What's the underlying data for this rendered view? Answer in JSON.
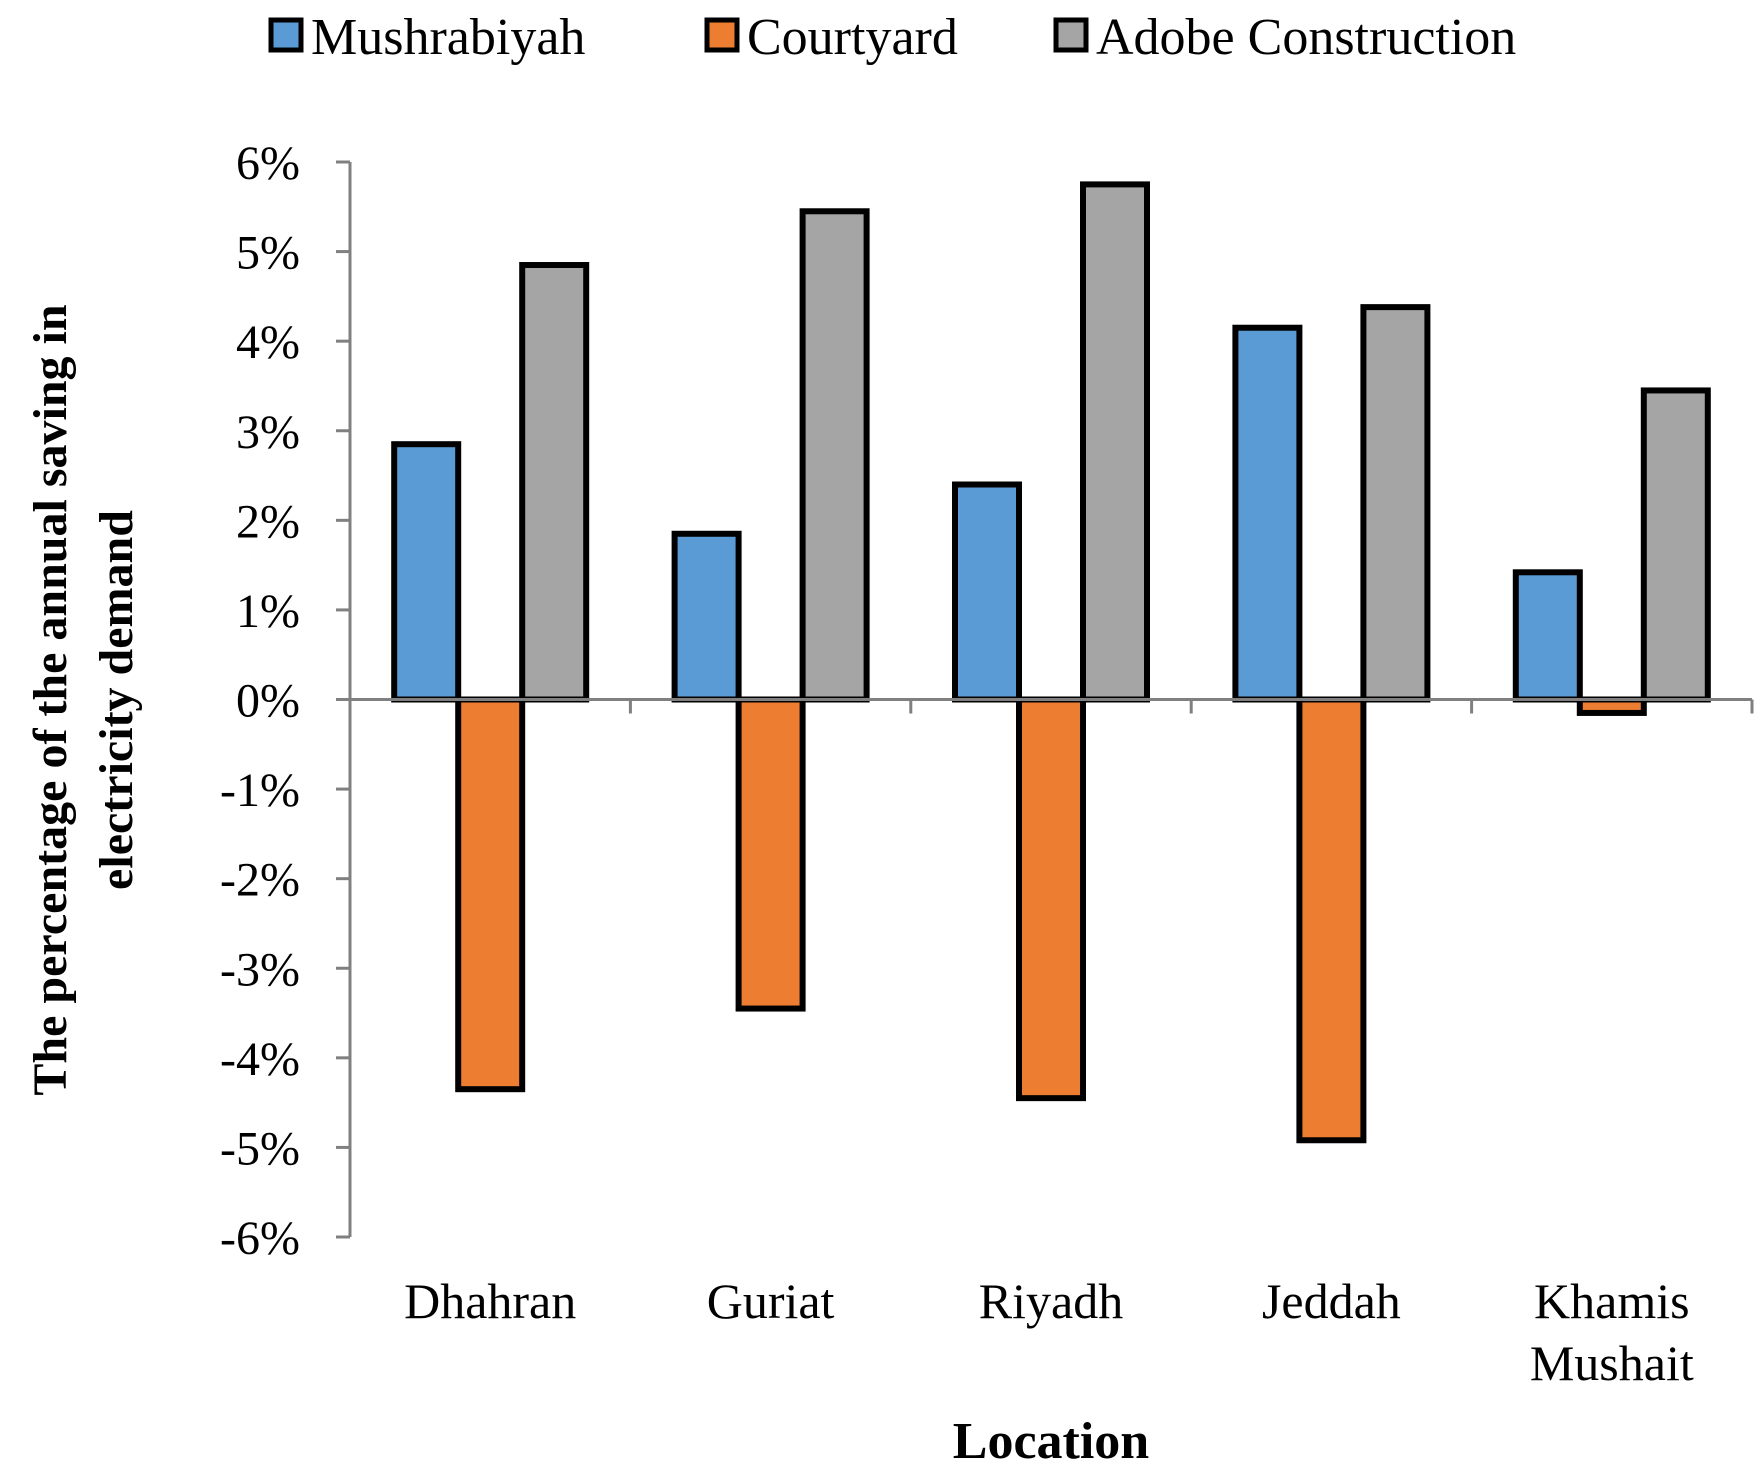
{
  "chart_data": {
    "type": "bar",
    "title": "",
    "xlabel": "Location",
    "ylabel_lines": [
      "The percentage of the annual saving in",
      "electricity demand"
    ],
    "ylim": [
      -6,
      6
    ],
    "ytick_step": 1,
    "ytick_suffix": "%",
    "yticks": [
      "-6%",
      "-5%",
      "-4%",
      "-3%",
      "-2%",
      "-1%",
      "0%",
      "1%",
      "2%",
      "3%",
      "4%",
      "5%",
      "6%"
    ],
    "grid": false,
    "legend_position": "top",
    "categories": [
      [
        "Dhahran"
      ],
      [
        "Guriat"
      ],
      [
        "Riyadh"
      ],
      [
        "Jeddah"
      ],
      [
        "Khamis",
        "Mushait"
      ]
    ],
    "series": [
      {
        "name": "Mushrabiyah",
        "color": "#5B9BD5",
        "values": [
          2.85,
          1.85,
          2.4,
          4.15,
          1.42
        ]
      },
      {
        "name": "Courtyard",
        "color": "#ED7D31",
        "values": [
          -4.35,
          -3.45,
          -4.45,
          -4.92,
          -0.15
        ]
      },
      {
        "name": "Adobe Construction",
        "color": "#A5A5A5",
        "values": [
          4.85,
          5.45,
          5.75,
          4.38,
          3.45
        ]
      }
    ]
  }
}
